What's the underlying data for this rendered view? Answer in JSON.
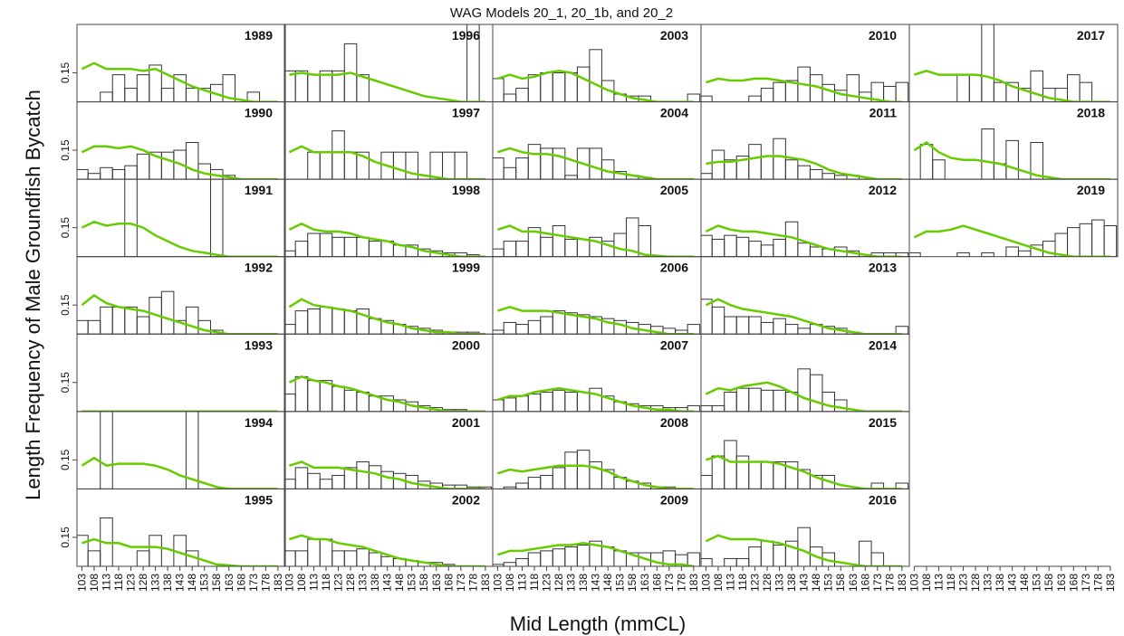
{
  "chart_data": {
    "type": "panels",
    "title": "WAG Models 20_1, 20_1b, and 20_2",
    "xlabel": "Mid Length (mmCL)",
    "ylabel": "Length Frequency of Male Groundfish Bycatch",
    "x": [
      103,
      108,
      113,
      118,
      123,
      128,
      133,
      138,
      143,
      148,
      153,
      158,
      163,
      168,
      173,
      178,
      183
    ],
    "xlim": [
      101,
      186
    ],
    "ylim": [
      0,
      0.4
    ],
    "yticks": [
      0.15
    ],
    "bar_color": "#333333",
    "line_color": "#66cc00",
    "panels": [
      {
        "label": "1989",
        "values": [
          0,
          0,
          0.05,
          0.14,
          0.07,
          0.14,
          0.19,
          0.07,
          0.14,
          0.07,
          0.07,
          0.09,
          0.14,
          0,
          0.05,
          0,
          0
        ],
        "expected": [
          0.17,
          0.2,
          0.17,
          0.17,
          0.17,
          0.16,
          0.17,
          0.14,
          0.11,
          0.08,
          0.06,
          0.04,
          0.02,
          0.01,
          0,
          0,
          0
        ]
      },
      {
        "label": "1990",
        "values": [
          0.05,
          0.03,
          0.06,
          0.05,
          0.07,
          0.13,
          0.14,
          0.14,
          0.15,
          0.19,
          0.08,
          0.05,
          0.02,
          0,
          0,
          0,
          0
        ],
        "expected": [
          0.14,
          0.17,
          0.17,
          0.16,
          0.17,
          0.15,
          0.12,
          0.1,
          0.08,
          0.05,
          0.03,
          0.02,
          0.01,
          0,
          0,
          0,
          0
        ]
      },
      {
        "label": "1991",
        "values": [
          0,
          0,
          0,
          0,
          0.6,
          0,
          0,
          0,
          0,
          0,
          0,
          0.6,
          0,
          0,
          0,
          0,
          0
        ],
        "expected": [
          0.15,
          0.18,
          0.16,
          0.17,
          0.17,
          0.15,
          0.11,
          0.08,
          0.05,
          0.03,
          0.02,
          0.01,
          0,
          0,
          0,
          0,
          0
        ]
      },
      {
        "label": "1992",
        "values": [
          0.07,
          0.07,
          0.14,
          0.14,
          0.14,
          0.09,
          0.19,
          0.22,
          0.07,
          0.14,
          0.07,
          0.02,
          0,
          0,
          0,
          0,
          0
        ],
        "expected": [
          0.15,
          0.2,
          0.16,
          0.14,
          0.13,
          0.12,
          0.1,
          0.08,
          0.06,
          0.04,
          0.02,
          0.01,
          0,
          0,
          0,
          0,
          0
        ]
      },
      {
        "label": "1993",
        "values": [
          0,
          0,
          0,
          0,
          0,
          0,
          0,
          0,
          0,
          0,
          0,
          0,
          0,
          0,
          0,
          0,
          0
        ],
        "expected": [
          0,
          0,
          0,
          0,
          0,
          0,
          0,
          0,
          0,
          0,
          0,
          0,
          0,
          0,
          0,
          0,
          0
        ]
      },
      {
        "label": "1994",
        "values": [
          0,
          0,
          0.6,
          0,
          0,
          0,
          0,
          0,
          0,
          0.6,
          0,
          0,
          0,
          0,
          0,
          0,
          0
        ],
        "expected": [
          0.12,
          0.16,
          0.12,
          0.13,
          0.13,
          0.13,
          0.12,
          0.1,
          0.07,
          0.05,
          0.03,
          0.01,
          0,
          0,
          0,
          0,
          0
        ]
      },
      {
        "label": "1995",
        "values": [
          0.16,
          0.08,
          0.25,
          0,
          0,
          0.08,
          0.16,
          0,
          0.16,
          0.08,
          0,
          0,
          0,
          0,
          0,
          0,
          0
        ],
        "expected": [
          0.12,
          0.14,
          0.12,
          0.12,
          0.1,
          0.1,
          0.1,
          0.09,
          0.07,
          0.05,
          0.03,
          0.01,
          0.005,
          0,
          0,
          0,
          0
        ]
      },
      {
        "label": "1996",
        "values": [
          0.16,
          0.16,
          0.14,
          0.16,
          0.16,
          0.3,
          0.14,
          0,
          0,
          0,
          0,
          0,
          0,
          0,
          0,
          0.6,
          0
        ],
        "expected": [
          0.14,
          0.15,
          0.14,
          0.14,
          0.14,
          0.15,
          0.13,
          0.11,
          0.09,
          0.07,
          0.05,
          0.03,
          0.02,
          0.01,
          0,
          0,
          0
        ]
      },
      {
        "label": "1997",
        "values": [
          0,
          0,
          0.14,
          0.14,
          0.25,
          0.14,
          0.14,
          0,
          0.14,
          0.14,
          0.14,
          0,
          0.14,
          0.14,
          0.14,
          0,
          0
        ],
        "expected": [
          0.14,
          0.17,
          0.14,
          0.14,
          0.14,
          0.14,
          0.12,
          0.09,
          0.07,
          0.05,
          0.03,
          0.02,
          0.01,
          0,
          0,
          0,
          0
        ]
      },
      {
        "label": "1998",
        "values": [
          0.03,
          0.08,
          0.12,
          0.12,
          0.1,
          0.1,
          0.1,
          0.08,
          0.08,
          0.06,
          0.06,
          0.04,
          0.03,
          0.02,
          0.02,
          0.01,
          0
        ],
        "expected": [
          0.14,
          0.17,
          0.14,
          0.13,
          0.13,
          0.12,
          0.1,
          0.09,
          0.08,
          0.06,
          0.05,
          0.03,
          0.02,
          0.01,
          0,
          0,
          0
        ]
      },
      {
        "label": "1999",
        "values": [
          0.05,
          0.12,
          0.13,
          0.14,
          0.13,
          0.12,
          0.13,
          0.08,
          0.07,
          0.05,
          0.04,
          0.03,
          0.02,
          0.01,
          0.01,
          0.01,
          0
        ],
        "expected": [
          0.14,
          0.18,
          0.15,
          0.14,
          0.13,
          0.12,
          0.1,
          0.08,
          0.06,
          0.05,
          0.03,
          0.02,
          0.01,
          0.01,
          0,
          0,
          0
        ]
      },
      {
        "label": "2000",
        "values": [
          0.09,
          0.18,
          0.16,
          0.16,
          0.13,
          0.11,
          0.1,
          0.08,
          0.08,
          0.06,
          0.05,
          0.03,
          0.02,
          0.01,
          0.01,
          0,
          0
        ],
        "expected": [
          0.15,
          0.18,
          0.16,
          0.15,
          0.13,
          0.12,
          0.1,
          0.08,
          0.06,
          0.05,
          0.03,
          0.02,
          0.01,
          0,
          0,
          0,
          0
        ]
      },
      {
        "label": "2001",
        "values": [
          0.05,
          0.11,
          0.08,
          0.05,
          0.07,
          0.11,
          0.14,
          0.12,
          0.09,
          0.08,
          0.07,
          0.04,
          0.03,
          0.02,
          0.02,
          0.01,
          0.01
        ],
        "expected": [
          0.12,
          0.14,
          0.11,
          0.11,
          0.11,
          0.1,
          0.09,
          0.08,
          0.06,
          0.05,
          0.03,
          0.02,
          0.01,
          0,
          0,
          0,
          0
        ]
      },
      {
        "label": "2002",
        "values": [
          0.08,
          0.08,
          0.14,
          0.14,
          0.08,
          0.08,
          0.09,
          0.07,
          0.05,
          0.04,
          0.03,
          0.02,
          0.02,
          0.01,
          0,
          0,
          0
        ],
        "expected": [
          0.14,
          0.16,
          0.14,
          0.14,
          0.12,
          0.11,
          0.1,
          0.08,
          0.06,
          0.04,
          0.03,
          0.02,
          0.01,
          0,
          0,
          0,
          0
        ]
      },
      {
        "label": "2003",
        "values": [
          0.12,
          0.04,
          0.07,
          0.14,
          0.15,
          0.15,
          0.15,
          0.18,
          0.27,
          0.11,
          0.04,
          0.03,
          0.03,
          0,
          0,
          0,
          0.04
        ],
        "expected": [
          0.12,
          0.14,
          0.12,
          0.13,
          0.15,
          0.16,
          0.15,
          0.12,
          0.09,
          0.06,
          0.04,
          0.02,
          0.01,
          0,
          0,
          0,
          0
        ]
      },
      {
        "label": "2004",
        "values": [
          0.11,
          0.06,
          0.11,
          0.18,
          0.16,
          0.16,
          0.02,
          0.16,
          0.16,
          0.1,
          0.04,
          0.02,
          0.01,
          0,
          0,
          0,
          0
        ],
        "expected": [
          0.14,
          0.16,
          0.14,
          0.13,
          0.13,
          0.12,
          0.1,
          0.08,
          0.06,
          0.04,
          0.03,
          0.02,
          0.01,
          0,
          0,
          0,
          0
        ]
      },
      {
        "label": "2005",
        "values": [
          0.04,
          0.08,
          0.08,
          0.15,
          0.1,
          0.16,
          0.09,
          0.09,
          0.1,
          0.08,
          0.12,
          0.2,
          0.16,
          0,
          0,
          0,
          0
        ],
        "expected": [
          0.14,
          0.16,
          0.13,
          0.13,
          0.12,
          0.11,
          0.1,
          0.09,
          0.08,
          0.06,
          0.04,
          0.03,
          0.01,
          0.005,
          0,
          0,
          0
        ]
      },
      {
        "label": "2006",
        "values": [
          0.02,
          0.06,
          0.05,
          0.07,
          0.09,
          0.12,
          0.11,
          0.1,
          0.09,
          0.08,
          0.07,
          0.06,
          0.05,
          0.04,
          0.03,
          0.02,
          0.05
        ],
        "expected": [
          0.12,
          0.14,
          0.12,
          0.12,
          0.12,
          0.11,
          0.1,
          0.09,
          0.08,
          0.06,
          0.05,
          0.03,
          0.02,
          0.01,
          0,
          0,
          0
        ]
      },
      {
        "label": "2007",
        "values": [
          0.06,
          0.07,
          0.08,
          0.09,
          0.1,
          0.11,
          0.1,
          0.1,
          0.12,
          0.08,
          0.05,
          0.04,
          0.03,
          0.03,
          0.02,
          0.02,
          0.03
        ],
        "expected": [
          0.06,
          0.08,
          0.08,
          0.1,
          0.11,
          0.12,
          0.11,
          0.1,
          0.09,
          0.07,
          0.05,
          0.03,
          0.02,
          0.01,
          0.01,
          0,
          0
        ]
      },
      {
        "label": "2008",
        "values": [
          0,
          0.01,
          0.03,
          0.06,
          0.07,
          0.11,
          0.19,
          0.2,
          0.14,
          0.1,
          0.06,
          0.04,
          0.03,
          0.01,
          0.01,
          0,
          0
        ],
        "expected": [
          0.08,
          0.1,
          0.09,
          0.1,
          0.11,
          0.12,
          0.12,
          0.12,
          0.11,
          0.09,
          0.06,
          0.04,
          0.02,
          0.01,
          0,
          0,
          0
        ]
      },
      {
        "label": "2009",
        "values": [
          0.01,
          0.02,
          0.04,
          0.07,
          0.08,
          0.09,
          0.1,
          0.11,
          0.13,
          0.1,
          0.08,
          0.07,
          0.07,
          0.07,
          0.08,
          0.06,
          0.07
        ],
        "expected": [
          0.06,
          0.08,
          0.08,
          0.09,
          0.1,
          0.11,
          0.11,
          0.12,
          0.11,
          0.1,
          0.08,
          0.06,
          0.04,
          0.02,
          0.01,
          0.01,
          0
        ]
      },
      {
        "label": "2010",
        "values": [
          0.03,
          0,
          0,
          0,
          0.03,
          0.07,
          0.1,
          0.11,
          0.18,
          0.14,
          0.09,
          0.06,
          0.14,
          0.05,
          0.1,
          0.08,
          0.1
        ],
        "expected": [
          0.1,
          0.12,
          0.11,
          0.11,
          0.12,
          0.12,
          0.11,
          0.1,
          0.09,
          0.08,
          0.06,
          0.04,
          0.03,
          0.02,
          0.01,
          0,
          0
        ]
      },
      {
        "label": "2011",
        "values": [
          0.03,
          0.15,
          0.1,
          0.12,
          0.18,
          0.12,
          0.21,
          0.1,
          0.07,
          0.05,
          0.03,
          0.02,
          0.02,
          0,
          0,
          0,
          0
        ],
        "expected": [
          0.08,
          0.09,
          0.09,
          0.1,
          0.11,
          0.12,
          0.12,
          0.11,
          0.1,
          0.08,
          0.05,
          0.03,
          0.02,
          0.01,
          0,
          0,
          0
        ]
      },
      {
        "label": "2012",
        "values": [
          0.11,
          0.09,
          0.11,
          0.1,
          0.08,
          0.06,
          0.09,
          0.18,
          0.07,
          0.05,
          0.04,
          0.05,
          0.03,
          0.01,
          0.02,
          0.02,
          0.02
        ],
        "expected": [
          0.13,
          0.16,
          0.14,
          0.13,
          0.13,
          0.12,
          0.11,
          0.1,
          0.08,
          0.06,
          0.04,
          0.03,
          0.02,
          0.01,
          0,
          0,
          0
        ]
      },
      {
        "label": "2013",
        "values": [
          0.18,
          0.14,
          0.09,
          0.09,
          0.09,
          0.06,
          0.08,
          0.05,
          0.03,
          0.05,
          0.04,
          0.03,
          0.01,
          0,
          0,
          0,
          0.04
        ],
        "expected": [
          0.15,
          0.18,
          0.15,
          0.13,
          0.12,
          0.11,
          0.1,
          0.09,
          0.07,
          0.05,
          0.03,
          0.02,
          0.01,
          0,
          0,
          0,
          0
        ]
      },
      {
        "label": "2014",
        "values": [
          0.03,
          0.03,
          0.1,
          0.12,
          0.12,
          0.11,
          0.11,
          0.1,
          0.22,
          0.19,
          0.1,
          0.06,
          0,
          0,
          0,
          0,
          0
        ],
        "expected": [
          0.09,
          0.12,
          0.11,
          0.13,
          0.14,
          0.15,
          0.13,
          0.1,
          0.07,
          0.05,
          0.03,
          0.02,
          0.01,
          0,
          0,
          0,
          0
        ]
      },
      {
        "label": "2015",
        "values": [
          0.07,
          0.17,
          0.25,
          0.17,
          0.14,
          0.14,
          0.14,
          0.14,
          0.1,
          0.07,
          0.07,
          0,
          0,
          0,
          0.03,
          0,
          0.03
        ],
        "expected": [
          0.15,
          0.17,
          0.14,
          0.14,
          0.14,
          0.14,
          0.13,
          0.11,
          0.09,
          0.06,
          0.04,
          0.02,
          0.01,
          0,
          0,
          0,
          0
        ]
      },
      {
        "label": "2016",
        "values": [
          0.04,
          0,
          0.04,
          0.04,
          0.1,
          0.13,
          0.11,
          0.13,
          0.2,
          0.1,
          0.07,
          0,
          0,
          0.13,
          0.07,
          0,
          0
        ],
        "expected": [
          0.13,
          0.16,
          0.14,
          0.14,
          0.14,
          0.13,
          0.12,
          0.1,
          0.08,
          0.05,
          0.03,
          0.02,
          0.01,
          0,
          0,
          0,
          0
        ]
      },
      {
        "label": "2017",
        "values": [
          0,
          0,
          0,
          0,
          0.14,
          0.14,
          0.4,
          0.1,
          0.1,
          0.07,
          0.16,
          0.07,
          0.07,
          0.14,
          0.1,
          0,
          0
        ],
        "expected": [
          0.14,
          0.16,
          0.14,
          0.14,
          0.14,
          0.14,
          0.13,
          0.11,
          0.08,
          0.06,
          0.04,
          0.02,
          0.01,
          0,
          0,
          0,
          0
        ]
      },
      {
        "label": "2018",
        "values": [
          0,
          0.18,
          0.1,
          0,
          0,
          0,
          0.26,
          0.08,
          0.2,
          0,
          0.19,
          0,
          0,
          0,
          0,
          0,
          0
        ],
        "expected": [
          0.15,
          0.19,
          0.14,
          0.11,
          0.1,
          0.1,
          0.09,
          0.08,
          0.06,
          0.04,
          0.02,
          0.01,
          0,
          0,
          0,
          0,
          0
        ]
      },
      {
        "label": "2019",
        "values": [
          0.02,
          0,
          0,
          0,
          0.02,
          0,
          0.02,
          0,
          0.05,
          0.03,
          0.06,
          0.08,
          0.12,
          0.15,
          0.17,
          0.19,
          0.16
        ],
        "expected": [
          0.1,
          0.13,
          0.13,
          0.14,
          0.16,
          0.14,
          0.12,
          0.1,
          0.08,
          0.06,
          0.04,
          0.02,
          0.01,
          0,
          0,
          0,
          0
        ]
      }
    ]
  }
}
